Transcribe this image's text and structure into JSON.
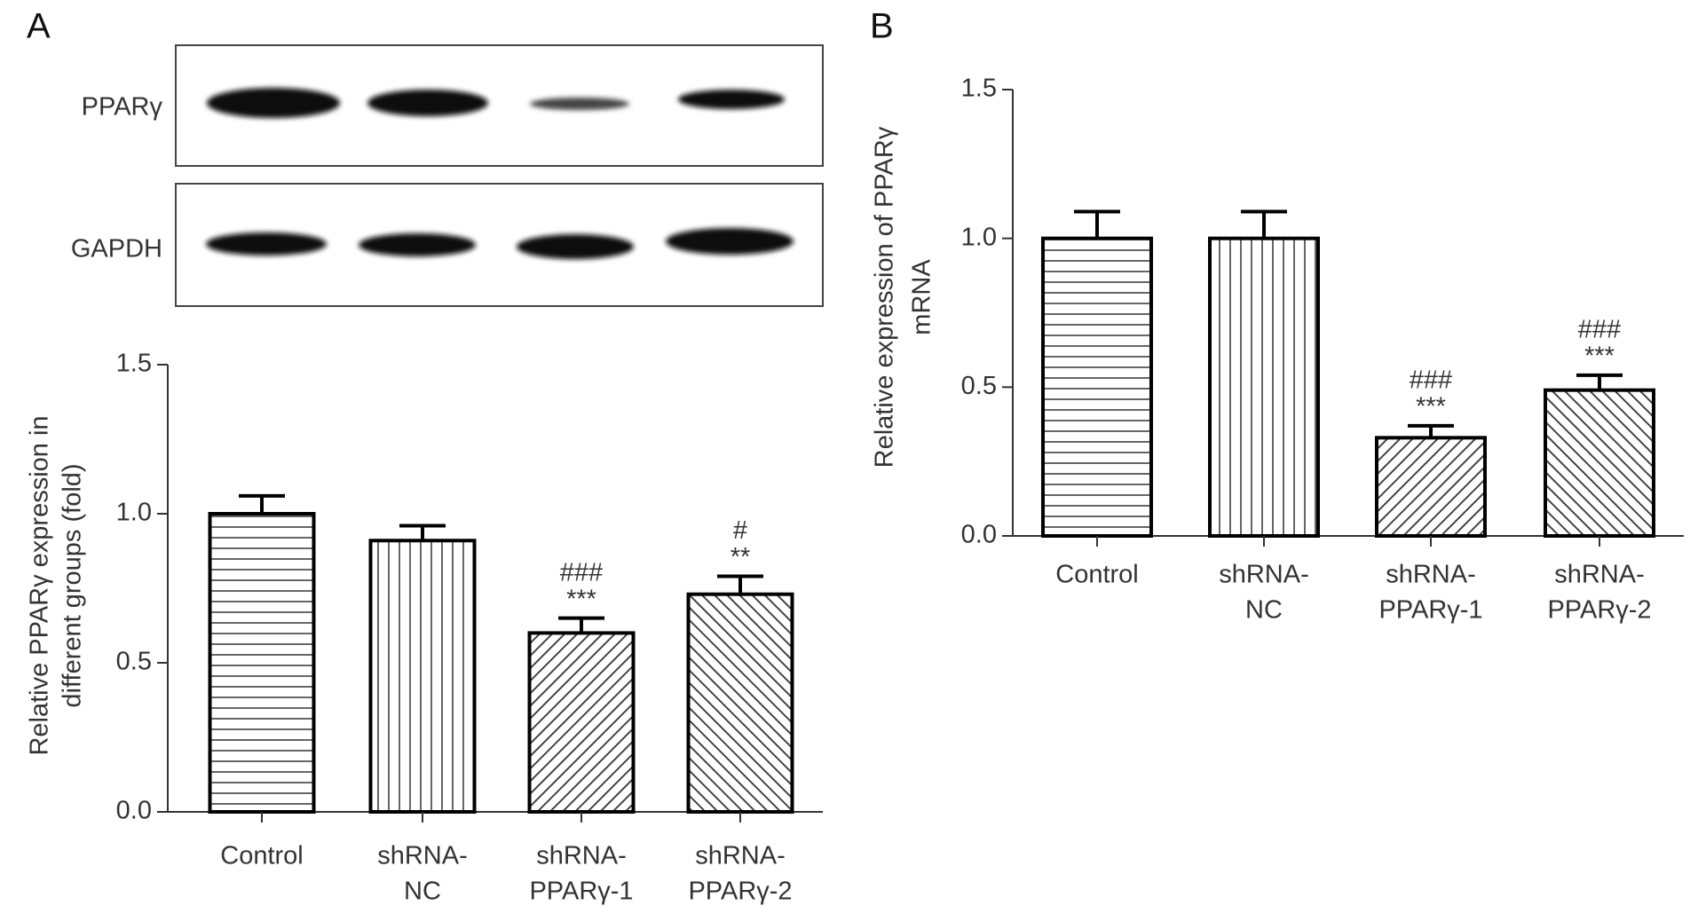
{
  "blot": {
    "labels": [
      "PPARγ",
      "GAPDH"
    ]
  },
  "chart_data": [
    {
      "type": "bar",
      "panel": "A",
      "ylabel": [
        "Relative PPARγ expression in",
        "different groups (fold)"
      ],
      "categories": [
        [
          "Control"
        ],
        [
          "shRNA-",
          "NC"
        ],
        [
          "shRNA-",
          "PPARγ-1"
        ],
        [
          "shRNA-",
          "PPARγ-2"
        ]
      ],
      "values": [
        1.0,
        0.91,
        0.6,
        0.73
      ],
      "errors": [
        0.06,
        0.05,
        0.05,
        0.06
      ],
      "annotations": [
        null,
        null,
        [
          "###",
          "***"
        ],
        [
          "#",
          "**"
        ]
      ],
      "hatch": [
        "horizontal",
        "vertical",
        "diag-up",
        "diag-down"
      ],
      "color": "#000000",
      "ylim": [
        0,
        1.5
      ],
      "yticks": [
        {
          "value": 0,
          "label": "0.0"
        },
        {
          "value": 0.5,
          "label": "0.5"
        },
        {
          "value": 1,
          "label": "1.0"
        },
        {
          "value": 1.5,
          "label": "1.5"
        }
      ]
    },
    {
      "type": "bar",
      "panel": "B",
      "ylabel": [
        "Relative expression of PPARγ",
        "mRNA"
      ],
      "categories": [
        [
          "Control"
        ],
        [
          "shRNA-",
          "NC"
        ],
        [
          "shRNA-",
          "PPARγ-1"
        ],
        [
          "shRNA-",
          "PPARγ-2"
        ]
      ],
      "values": [
        1.0,
        1.0,
        0.33,
        0.49
      ],
      "errors": [
        0.09,
        0.09,
        0.04,
        0.05
      ],
      "annotations": [
        null,
        null,
        [
          "###",
          "***"
        ],
        [
          "###",
          "***"
        ]
      ],
      "hatch": [
        "horizontal",
        "vertical",
        "diag-up",
        "diag-down"
      ],
      "color": "#000000",
      "ylim": [
        0,
        1.5
      ],
      "yticks": [
        {
          "value": 0,
          "label": "0.0"
        },
        {
          "value": 0.5,
          "label": "0.5"
        },
        {
          "value": 1,
          "label": "1.0"
        },
        {
          "value": 1.5,
          "label": "1.5"
        }
      ]
    }
  ]
}
